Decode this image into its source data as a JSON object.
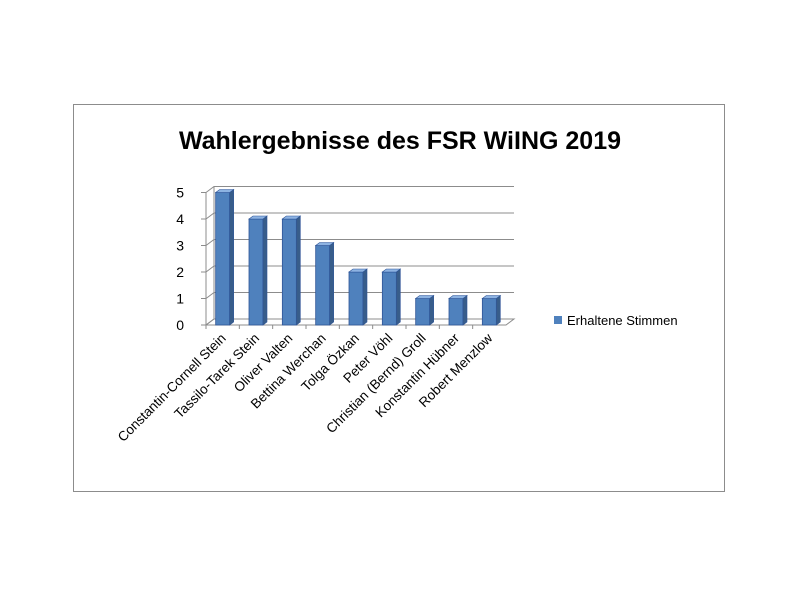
{
  "chart_data": {
    "type": "bar",
    "title": "Wahlergebnisse  des FSR WiING 2019",
    "categories": [
      "Constantin-Cornell Stein",
      "Tassilo-Tarek Stein",
      "Oliver Valten",
      "Bettina Werchan",
      "Tolga Özkan",
      "Peter Vöhl",
      "Christian (Bernd) Groll",
      "Konstantin Hübner",
      "Robert Menzlow"
    ],
    "series": [
      {
        "name": "Erhaltene Stimmen",
        "values": [
          5,
          4,
          4,
          3,
          2,
          2,
          1,
          1,
          1
        ],
        "color": "#4f81bd"
      }
    ],
    "yticks": [
      "0",
      "1",
      "2",
      "3",
      "4",
      "5"
    ],
    "ylim": [
      0,
      5
    ],
    "grid": true,
    "legend_position": "right",
    "style": "3d-column"
  }
}
